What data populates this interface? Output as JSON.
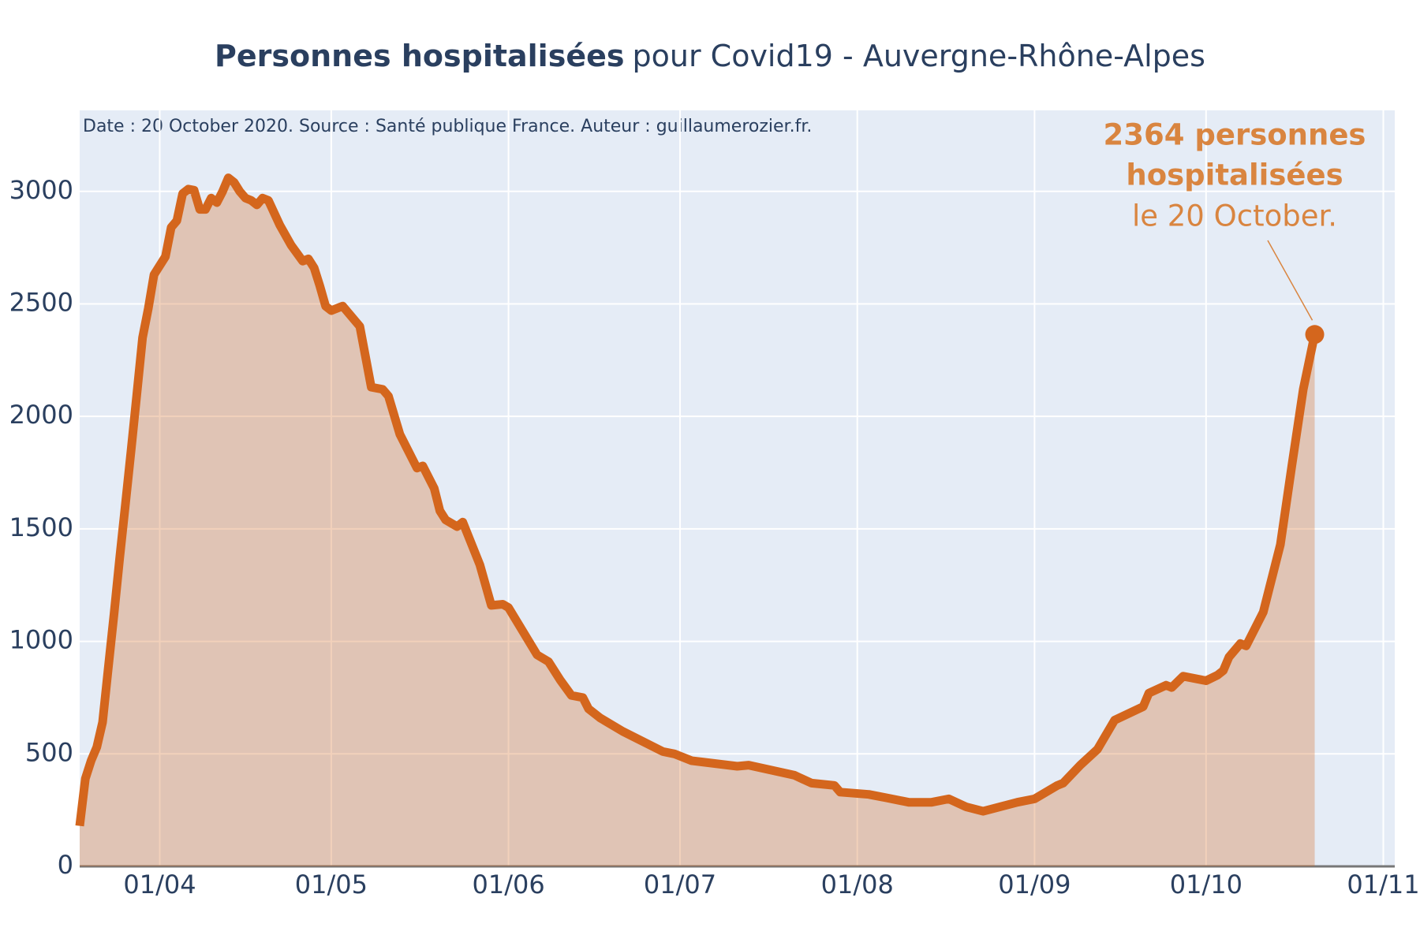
{
  "chart_data": {
    "type": "line",
    "title_bold": "Personnes hospitalisées",
    "title": "pour Covid19 - Auvergne-Rhône-Alpes",
    "note": "Date : 20 October 2020. Source : Santé publique France. Auteur : guillaumerozier.fr.",
    "annotation": {
      "bold_lines": [
        "2364 personnes",
        "hospitalisées"
      ],
      "line": "le 20 October."
    },
    "x": [
      "18/03",
      "19/03",
      "20/03",
      "21/03",
      "22/03",
      "23/03",
      "24/03",
      "25/03",
      "26/03",
      "27/03",
      "28/03",
      "29/03",
      "30/03",
      "31/03",
      "02/04",
      "03/04",
      "04/04",
      "05/04",
      "06/04",
      "07/04",
      "08/04",
      "09/04",
      "10/04",
      "11/04",
      "12/04",
      "13/04",
      "14/04",
      "15/04",
      "16/04",
      "17/04",
      "18/04",
      "19/04",
      "20/04",
      "22/04",
      "24/04",
      "26/04",
      "27/04",
      "28/04",
      "29/04",
      "30/04",
      "01/05",
      "03/05",
      "06/05",
      "08/05",
      "10/05",
      "11/05",
      "13/05",
      "16/05",
      "17/05",
      "19/05",
      "20/05",
      "21/05",
      "23/05",
      "24/05",
      "27/05",
      "29/05",
      "31/05",
      "01/06",
      "06/06",
      "08/06",
      "10/06",
      "12/06",
      "14/06",
      "15/06",
      "17/06",
      "21/06",
      "28/06",
      "30/06",
      "03/07",
      "11/07",
      "13/07",
      "21/07",
      "24/07",
      "28/07",
      "29/07",
      "03/08",
      "06/08",
      "10/08",
      "14/08",
      "17/08",
      "20/08",
      "23/08",
      "29/08",
      "01/09",
      "05/09",
      "06/09",
      "09/09",
      "12/09",
      "15/09",
      "20/09",
      "21/09",
      "24/09",
      "25/09",
      "27/09",
      "01/10",
      "03/10",
      "04/10",
      "05/10",
      "07/10",
      "08/10",
      "11/10",
      "14/10",
      "16/10",
      "18/10",
      "20/10"
    ],
    "series": [
      {
        "name": "Personnes hospitalisées",
        "color": "#d4661d",
        "values": [
          180,
          390,
          470,
          530,
          640,
          880,
          1120,
          1370,
          1610,
          1850,
          2100,
          2350,
          2480,
          2630,
          2710,
          2840,
          2870,
          2990,
          3010,
          3005,
          2920,
          2920,
          2970,
          2950,
          3000,
          3060,
          3040,
          3000,
          2970,
          2960,
          2940,
          2970,
          2960,
          2850,
          2760,
          2690,
          2700,
          2660,
          2580,
          2490,
          2470,
          2490,
          2400,
          2130,
          2120,
          2090,
          1920,
          1770,
          1780,
          1680,
          1580,
          1540,
          1510,
          1530,
          1340,
          1160,
          1165,
          1150,
          940,
          910,
          830,
          760,
          750,
          700,
          660,
          600,
          510,
          500,
          470,
          445,
          450,
          405,
          370,
          360,
          330,
          320,
          305,
          285,
          285,
          300,
          265,
          245,
          285,
          300,
          360,
          370,
          450,
          520,
          650,
          710,
          770,
          805,
          795,
          845,
          825,
          850,
          870,
          930,
          990,
          980,
          1130,
          1430,
          1780,
          2120,
          2364
        ]
      }
    ],
    "xlim": [
      "18/03",
      "03/11"
    ],
    "xticks": [
      "01/04",
      "01/05",
      "01/06",
      "01/07",
      "01/08",
      "01/09",
      "01/10",
      "01/11"
    ],
    "ylim": [
      0,
      3360
    ],
    "yticks": [
      0,
      500,
      1000,
      1500,
      2000,
      2500,
      3000
    ],
    "grid": true
  }
}
